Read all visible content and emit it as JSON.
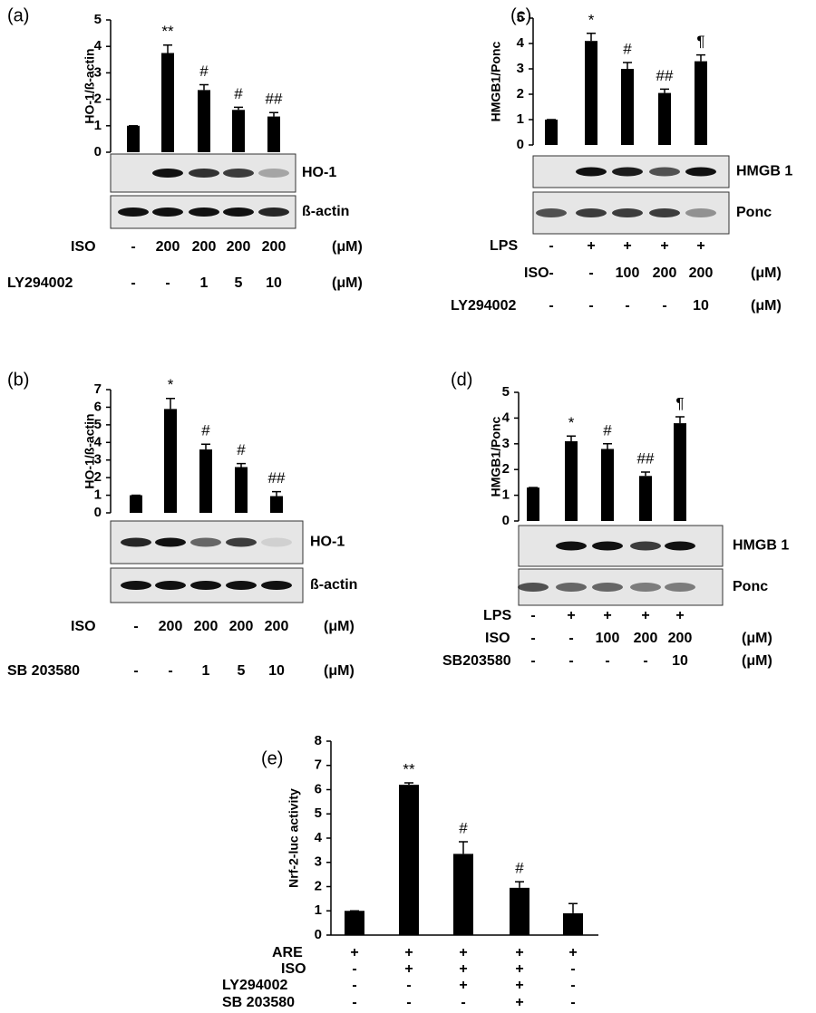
{
  "chart_data": [
    {
      "type": "bar",
      "panel": "(a)",
      "y_label": "HO-1/ß-actin",
      "color": "#000000",
      "values": [
        1,
        3.75,
        2.35,
        1.6,
        1.35
      ],
      "errors": [
        0,
        0.3,
        0.2,
        0.1,
        0.15
      ],
      "annotations": [
        null,
        "**",
        "#",
        "#",
        "##"
      ],
      "ylim": [
        0,
        5
      ],
      "yticks": [
        0,
        1,
        2,
        3,
        4,
        5
      ],
      "blots": [
        "HO-1",
        "ß-actin"
      ],
      "treatments": [
        {
          "name": "ISO",
          "values": [
            "-",
            "200",
            "200",
            "200",
            "200"
          ],
          "unit": "(μM)"
        },
        {
          "name": "LY294002",
          "values": [
            "-",
            "-",
            "1",
            "5",
            "10"
          ],
          "unit": "(μM)"
        }
      ]
    },
    {
      "type": "bar",
      "panel": "(b)",
      "y_label": "HO-1/ß-actin",
      "color": "#000000",
      "values": [
        1,
        5.9,
        3.6,
        2.6,
        0.95
      ],
      "errors": [
        0,
        0.6,
        0.3,
        0.2,
        0.25
      ],
      "annotations": [
        null,
        "*",
        "#",
        "#",
        "##"
      ],
      "ylim": [
        0,
        7
      ],
      "yticks": [
        0,
        1,
        2,
        3,
        4,
        5,
        6,
        7
      ],
      "blots": [
        "HO-1",
        "ß-actin"
      ],
      "treatments": [
        {
          "name": "ISO",
          "values": [
            "-",
            "200",
            "200",
            "200",
            "200"
          ],
          "unit": "(μM)"
        },
        {
          "name": "SB 203580",
          "values": [
            "-",
            "-",
            "1",
            "5",
            "10"
          ],
          "unit": "(μM)"
        }
      ]
    },
    {
      "type": "bar",
      "panel": "(c)",
      "y_label": "HMGB1/Ponc",
      "color": "#000000",
      "values": [
        1,
        4.1,
        3.0,
        2.05,
        3.3
      ],
      "errors": [
        0,
        0.3,
        0.25,
        0.15,
        0.25
      ],
      "annotations": [
        null,
        "*",
        "#",
        "##",
        "¶"
      ],
      "ylim": [
        0,
        5
      ],
      "yticks": [
        0,
        1,
        2,
        3,
        4,
        5
      ],
      "blots": [
        "HMGB 1",
        "Ponc"
      ],
      "treatments": [
        {
          "name": "LPS",
          "values": [
            "-",
            "+",
            "+",
            "+",
            "+"
          ]
        },
        {
          "name": "ISO",
          "values": [
            "-",
            "-",
            "100",
            "200",
            "200"
          ],
          "unit": "(μM)"
        },
        {
          "name": "LY294002",
          "values": [
            "-",
            "-",
            "-",
            "-",
            "10"
          ],
          "unit": "(μM)"
        }
      ]
    },
    {
      "type": "bar",
      "panel": "(d)",
      "y_label": "HMGB1/Ponc",
      "color": "#000000",
      "values": [
        1.3,
        3.1,
        2.8,
        1.75,
        3.8
      ],
      "errors": [
        0,
        0.2,
        0.2,
        0.15,
        0.25
      ],
      "annotations": [
        null,
        "*",
        "#",
        "##",
        "¶"
      ],
      "ylim": [
        0,
        5
      ],
      "yticks": [
        0,
        1,
        2,
        3,
        4,
        5
      ],
      "blots": [
        "HMGB 1",
        "Ponc"
      ],
      "treatments": [
        {
          "name": "LPS",
          "values": [
            "-",
            "+",
            "+",
            "+",
            "+"
          ]
        },
        {
          "name": "ISO",
          "values": [
            "-",
            "-",
            "100",
            "200",
            "200"
          ],
          "unit": "(μM)"
        },
        {
          "name": "SB203580",
          "values": [
            "-",
            "-",
            "-",
            "-",
            "10"
          ],
          "unit": "(μM)"
        }
      ]
    },
    {
      "type": "bar",
      "panel": "(e)",
      "y_label": "Nrf-2-luc activity",
      "color": "#000000",
      "values": [
        1,
        6.2,
        3.35,
        1.95,
        0.9
      ],
      "errors": [
        0,
        0.08,
        0.5,
        0.25,
        0.4
      ],
      "annotations": [
        null,
        "**",
        "#",
        "#",
        null
      ],
      "ylim": [
        0,
        8
      ],
      "yticks": [
        0,
        1,
        2,
        3,
        4,
        5,
        6,
        7,
        8
      ],
      "treatments": [
        {
          "name": "ARE",
          "values": [
            "+",
            "+",
            "+",
            "+",
            "+"
          ]
        },
        {
          "name": "ISO",
          "values": [
            "-",
            "+",
            "+",
            "+",
            "-"
          ]
        },
        {
          "name": "LY294002",
          "values": [
            "-",
            "-",
            "+",
            "+",
            "-"
          ]
        },
        {
          "name": "SB 203580",
          "values": [
            "-",
            "-",
            "-",
            "+",
            "-"
          ]
        }
      ]
    }
  ]
}
